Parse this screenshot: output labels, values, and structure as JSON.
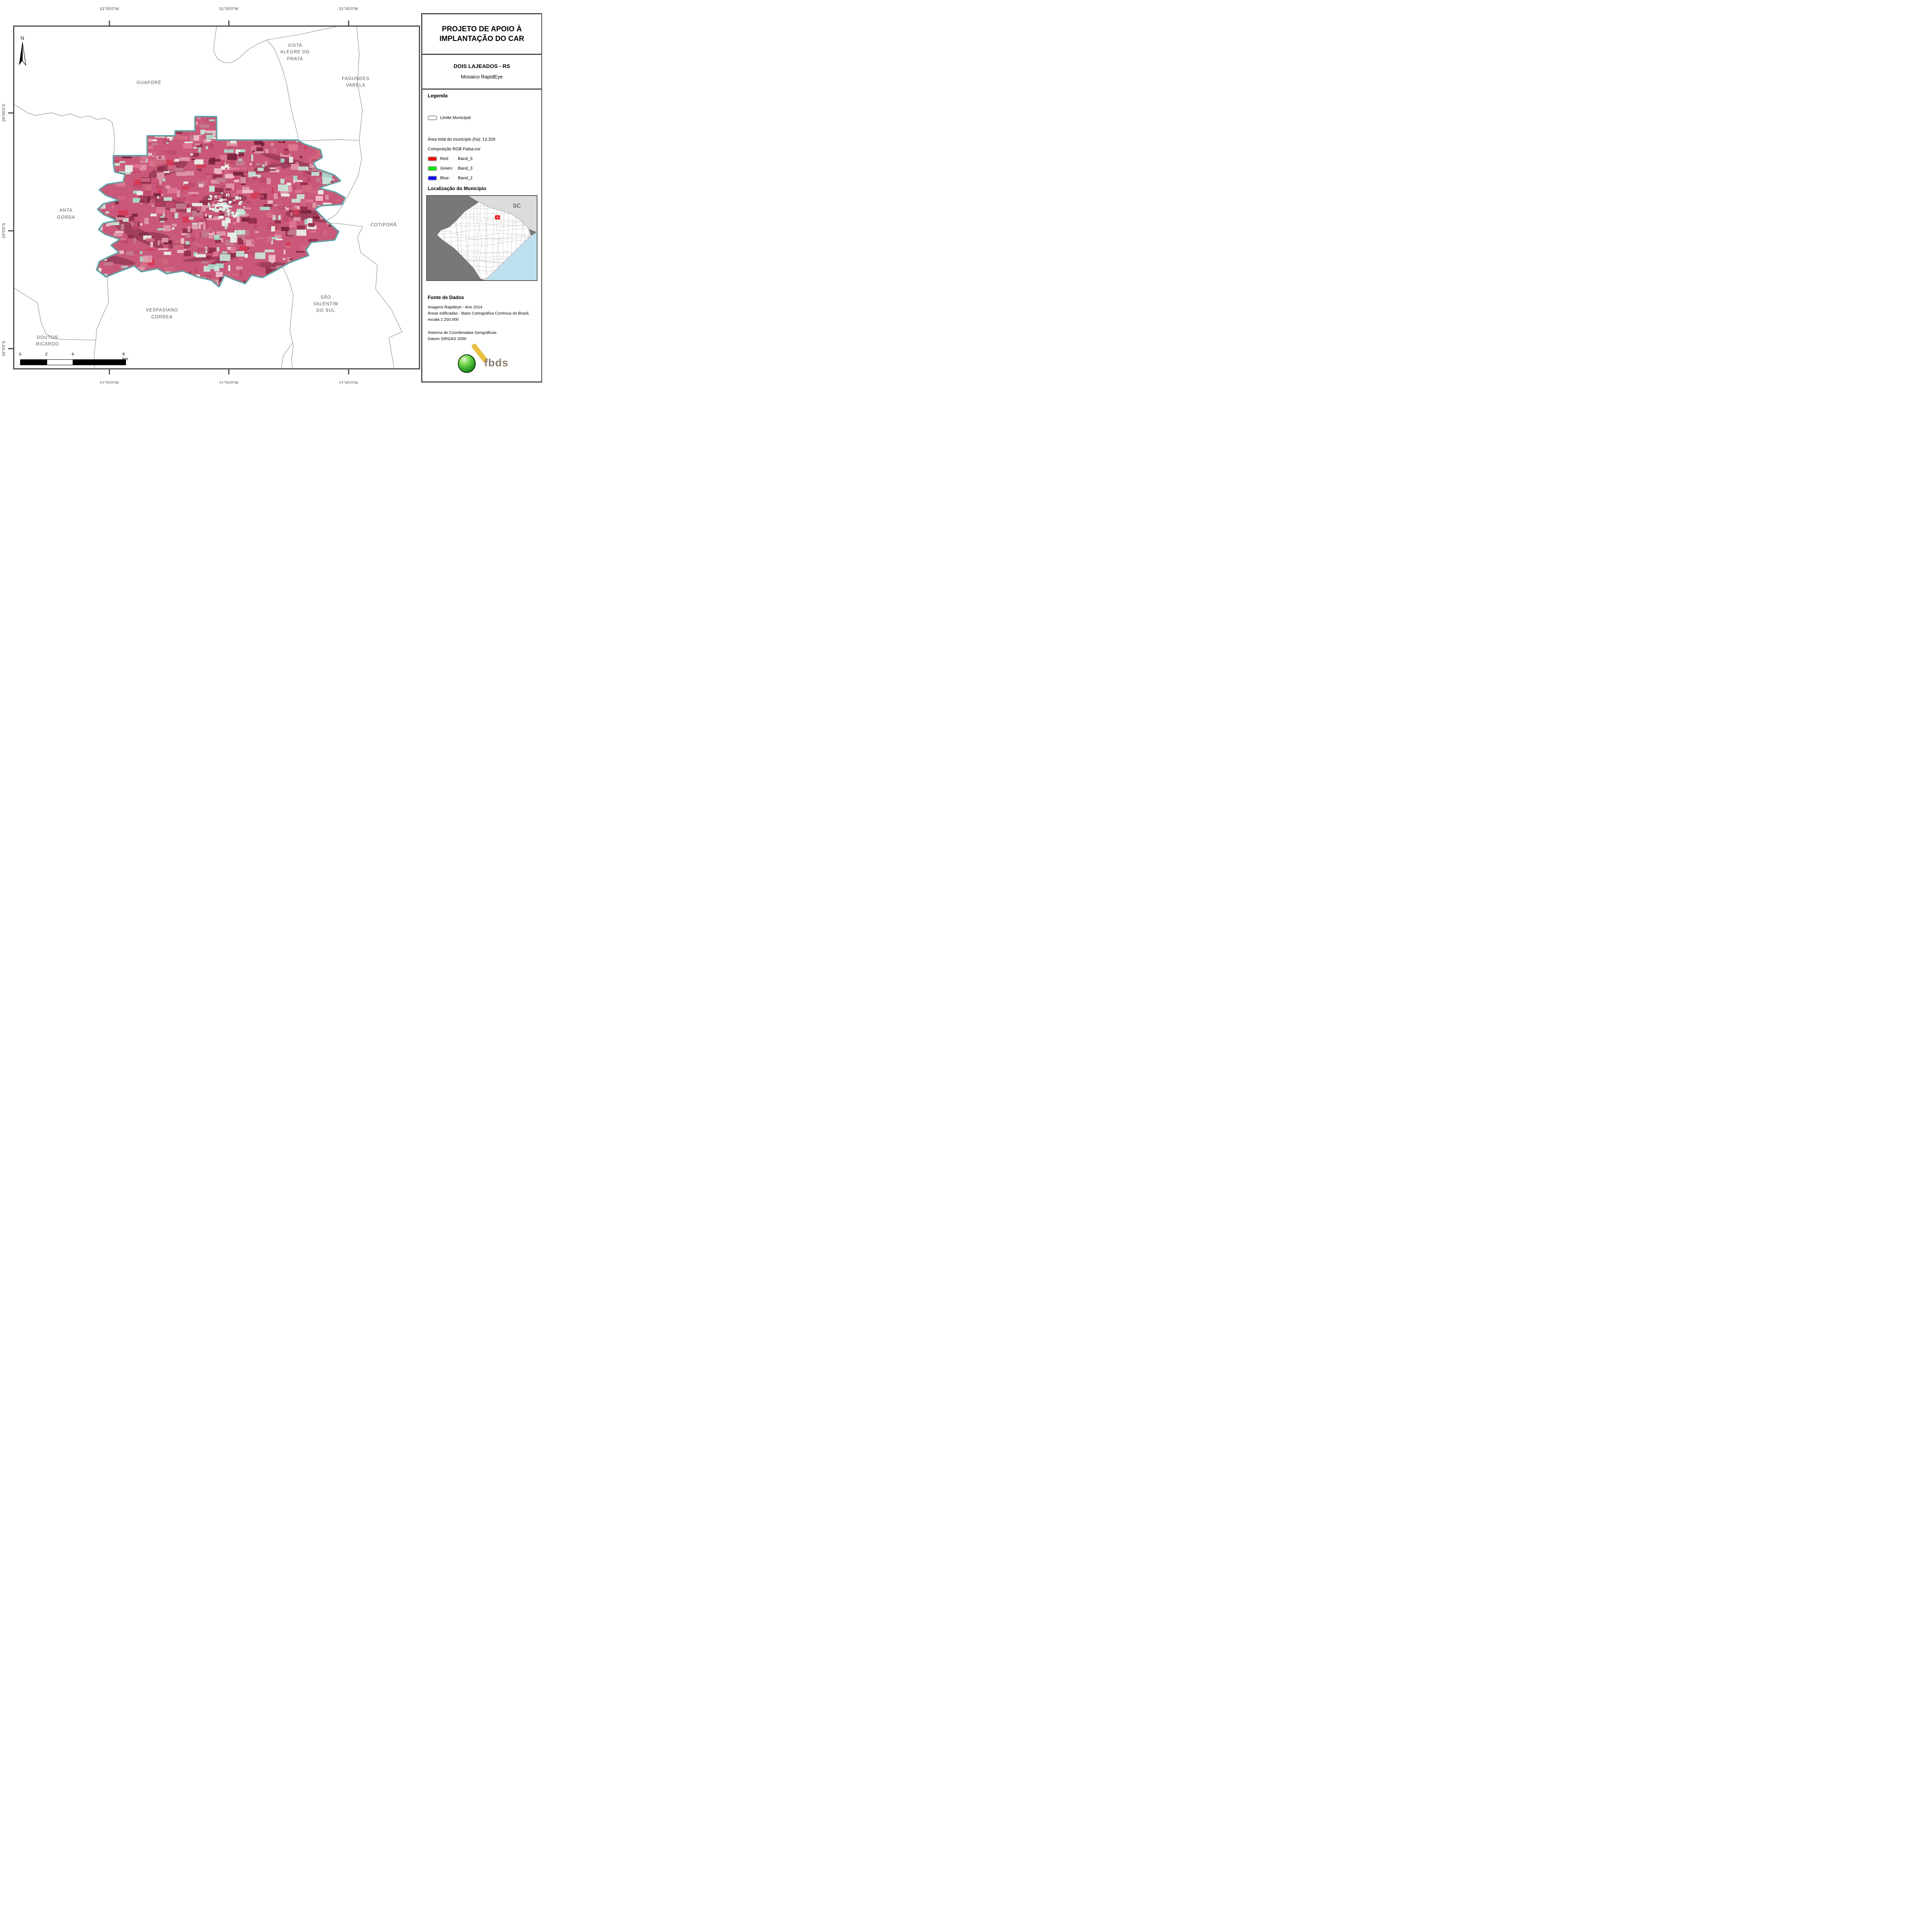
{
  "title_panel": {
    "title": "PROJETO DE APOIO À IMPLANTAÇÃO DO CAR",
    "municipality": "DOIS LAJEADOS - RS",
    "subtitle": "Mosaico RapidEye"
  },
  "legend": {
    "heading": "Legenda",
    "limite_label": "Limite Municipal",
    "area_total": "Área total do município (ha): 13.329",
    "composicao": "Composição RGB Falsa-cor",
    "bands": [
      {
        "label": "Red:",
        "value": "Band_5",
        "color": "#ff0000"
      },
      {
        "label": "Green:",
        "value": "Band_3",
        "color": "#00ee00"
      },
      {
        "label": "Blue:",
        "value": "Band_2",
        "color": "#0000ff"
      }
    ]
  },
  "localizacao": {
    "heading": "Localização do Município",
    "state_label": "SC"
  },
  "fonte": {
    "heading": "Fonte de Dados",
    "para1": "Imagens Rapideye - Ano 2014\nÁreas edificadas - Base Cartográfica Contínua do Brasil, escala 1:250.000",
    "para2": "Sistema de Coordenadas Geográficas\nDatum SIRGAS 2000"
  },
  "logo": {
    "text": "fbds"
  },
  "map": {
    "north_label": "N",
    "coords_top": [
      {
        "label": "51°55'0\"W"
      },
      {
        "label": "51°50'0\"W"
      },
      {
        "label": "51°45'0\"W"
      }
    ],
    "coords_left": [
      {
        "label": "28°55'0\"S"
      },
      {
        "label": "29°0'0\"S"
      },
      {
        "label": "29°5'0\"S"
      }
    ],
    "neighbors": [
      {
        "name": "GUAPORÉ",
        "lines": [
          "GUAPORÉ"
        ]
      },
      {
        "name": "VISTA ALEGRE DO PRATA",
        "lines": [
          "VISTA",
          "ALEGRE DO",
          "PRATA"
        ]
      },
      {
        "name": "FAGUNDES VARELA",
        "lines": [
          "FAGUNDES",
          "VARELA"
        ]
      },
      {
        "name": "ANTA GORDA",
        "lines": [
          "ANTA",
          "GORDA"
        ]
      },
      {
        "name": "COTIPORÃ",
        "lines": [
          "COTIPORÃ"
        ]
      },
      {
        "name": "SÃO VALENTIM DO SUL",
        "lines": [
          "SÃO",
          "VALENTIM",
          "DO SUL"
        ]
      },
      {
        "name": "VESPASIANO CORREA",
        "lines": [
          "VESPASIANO",
          "CORREA"
        ]
      },
      {
        "name": "DOUTOR RICARDO",
        "lines": [
          "DOUTOR",
          "RICARDO"
        ]
      }
    ],
    "scalebar": {
      "labels": [
        "0",
        "2",
        "4",
        "8 km"
      ]
    },
    "raster_colors": {
      "base": "#c9587a",
      "cyan_fringe": "#2fb9cf",
      "outline": "#8a8a8a"
    }
  }
}
